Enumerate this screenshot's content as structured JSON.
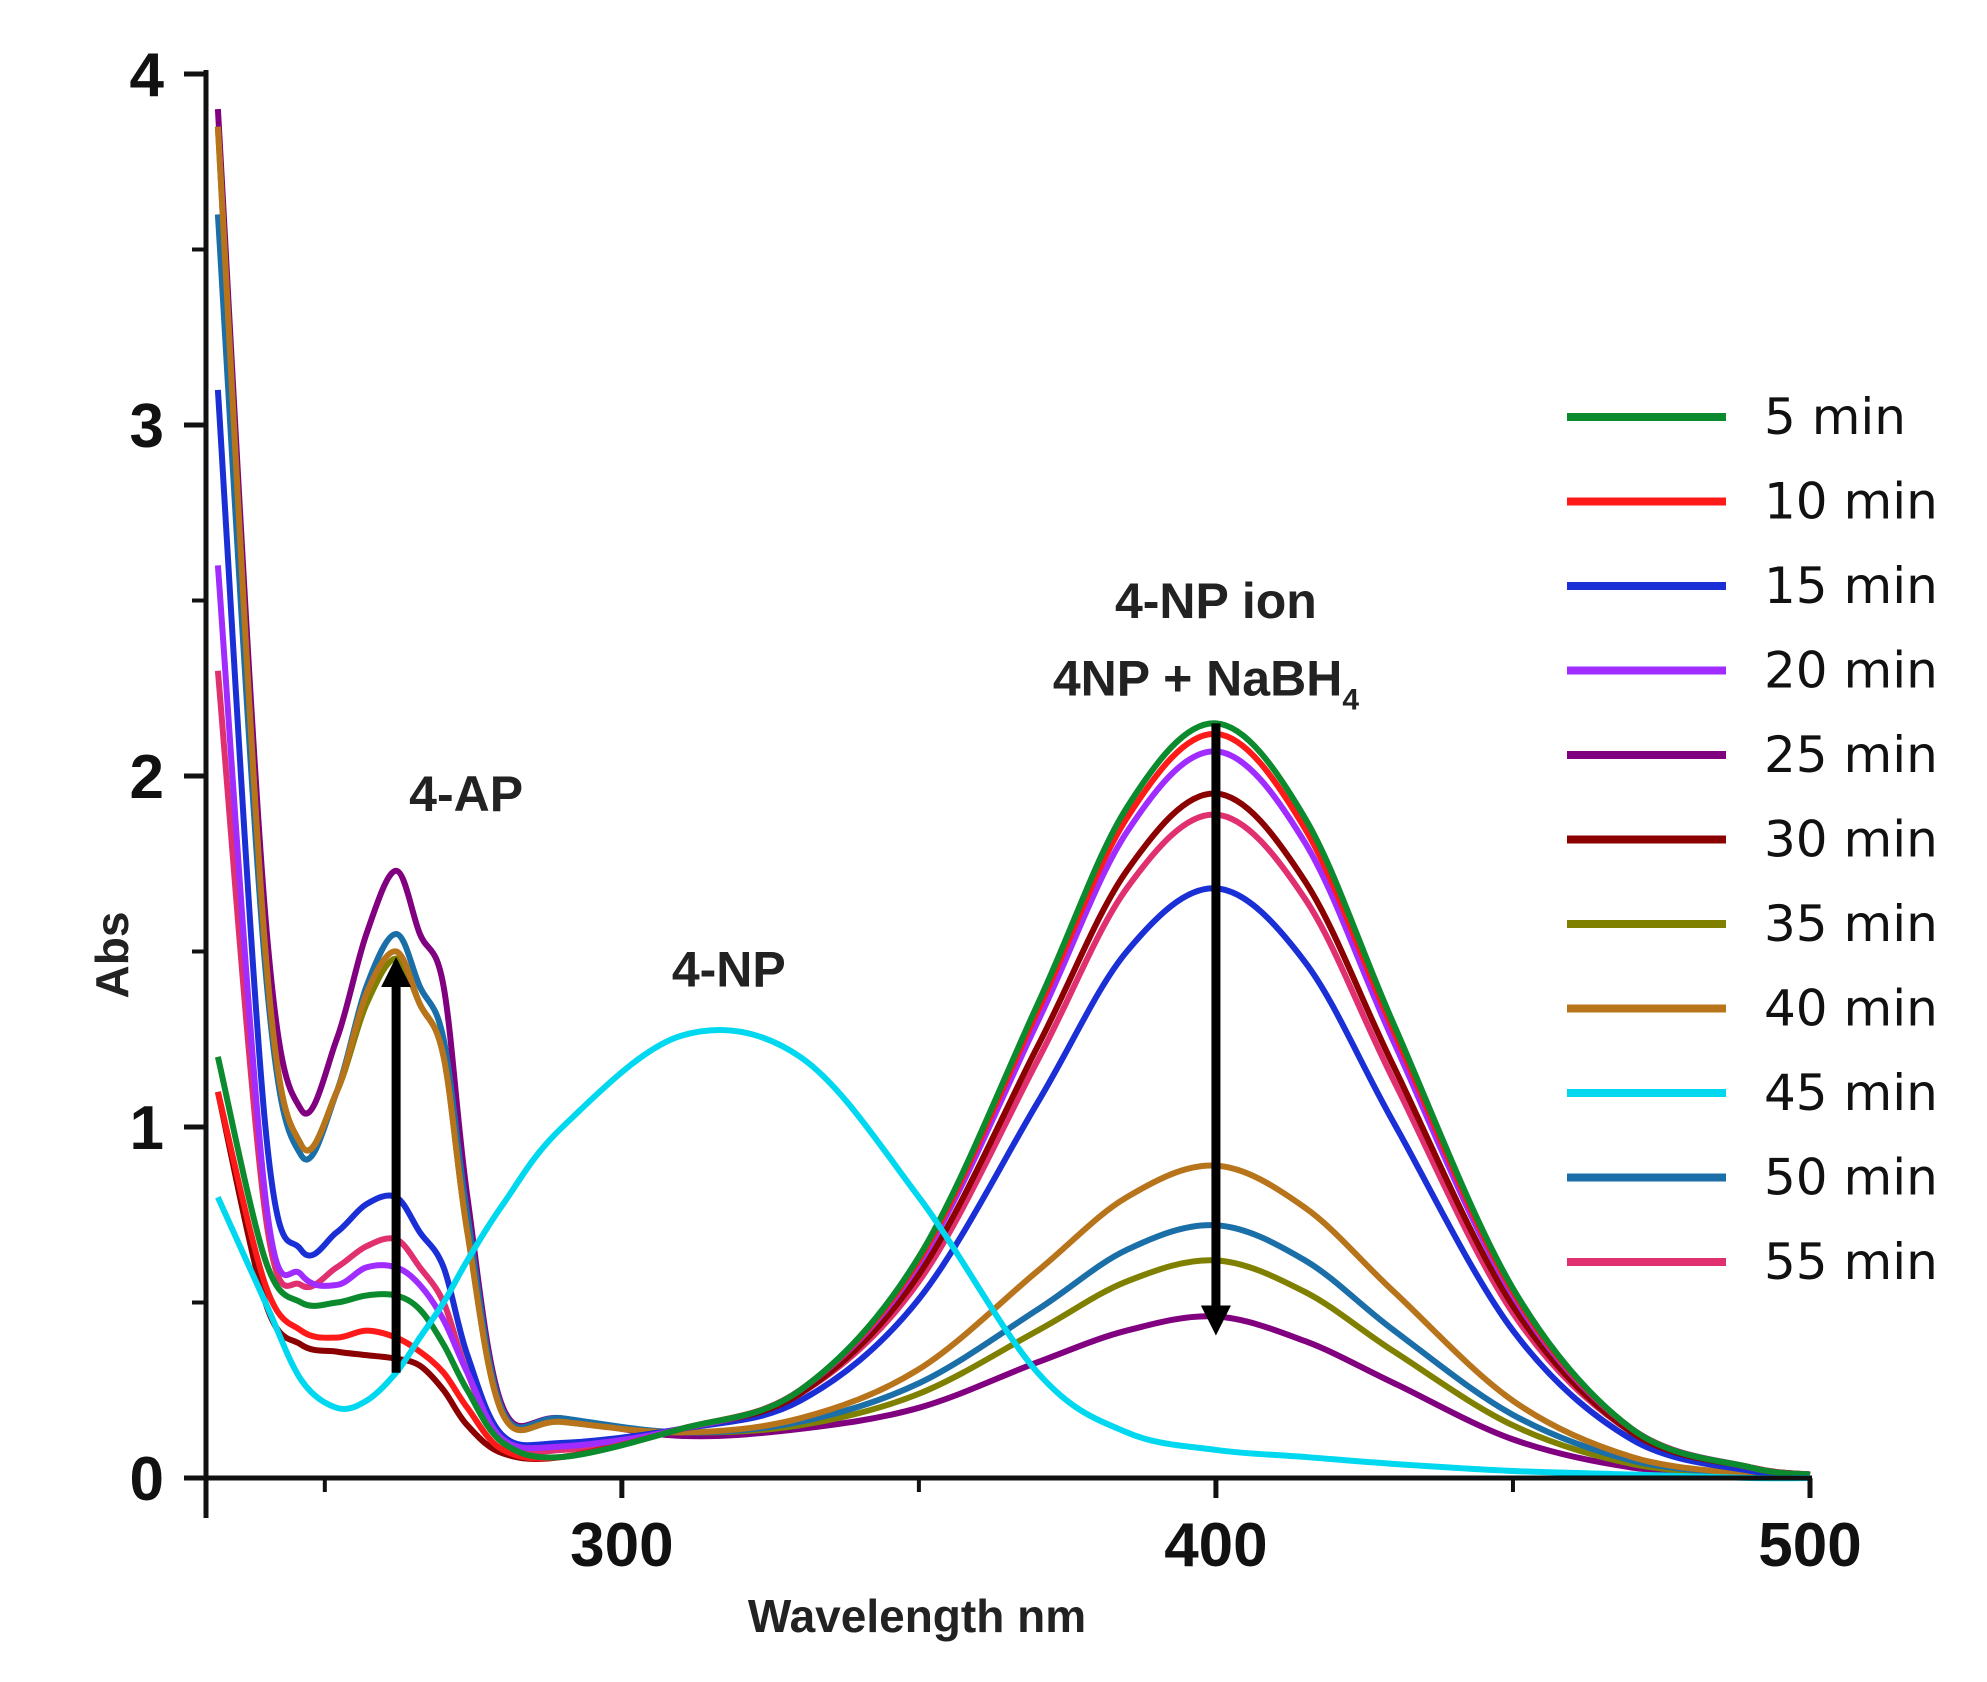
{
  "chart_data": {
    "type": "line",
    "title": "",
    "xlabel": "Wavelength nm",
    "ylabel": "Abs",
    "xlim": [
      230,
      500
    ],
    "ylim": [
      0,
      4
    ],
    "x_ticks": [
      300,
      400,
      500
    ],
    "x_minor_ticks": [
      250,
      350,
      450
    ],
    "y_ticks": [
      0,
      1,
      2,
      3,
      4
    ],
    "y_minor_ticks": [
      0.5,
      1.5,
      2.5,
      3.5
    ],
    "grid": false,
    "legend_position": "right",
    "x": [
      232,
      240,
      246,
      252,
      257,
      262,
      266,
      270,
      274,
      280,
      290,
      310,
      330,
      350,
      370,
      385,
      400,
      415,
      430,
      450,
      470,
      490,
      500
    ],
    "series": [
      {
        "name": "5 min",
        "color": "#0b8a2e",
        "values": [
          1.2,
          0.62,
          0.5,
          0.5,
          0.52,
          0.52,
          0.48,
          0.38,
          0.25,
          0.1,
          0.06,
          0.14,
          0.25,
          0.63,
          1.35,
          1.91,
          2.15,
          1.88,
          1.29,
          0.54,
          0.14,
          0.03,
          0.01
        ]
      },
      {
        "name": "10 min",
        "color": "#ff1a1a",
        "values": [
          1.1,
          0.55,
          0.42,
          0.4,
          0.42,
          0.4,
          0.36,
          0.3,
          0.2,
          0.08,
          0.06,
          0.14,
          0.25,
          0.62,
          1.33,
          1.88,
          2.12,
          1.85,
          1.27,
          0.53,
          0.14,
          0.03,
          0.01
        ]
      },
      {
        "name": "15 min",
        "color": "#1a2fd6",
        "values": [
          3.1,
          1.0,
          0.65,
          0.7,
          0.78,
          0.8,
          0.7,
          0.6,
          0.35,
          0.12,
          0.1,
          0.14,
          0.22,
          0.51,
          1.07,
          1.5,
          1.68,
          1.47,
          1.01,
          0.42,
          0.11,
          0.02,
          0.01
        ]
      },
      {
        "name": "20 min",
        "color": "#a12cff",
        "values": [
          2.6,
          0.8,
          0.58,
          0.55,
          0.6,
          0.6,
          0.55,
          0.45,
          0.3,
          0.11,
          0.09,
          0.14,
          0.25,
          0.61,
          1.3,
          1.84,
          2.07,
          1.81,
          1.24,
          0.52,
          0.14,
          0.03,
          0.01
        ]
      },
      {
        "name": "25 min",
        "color": "#800080",
        "values": [
          3.9,
          1.6,
          1.05,
          1.25,
          1.55,
          1.73,
          1.55,
          1.4,
          0.8,
          0.2,
          0.17,
          0.12,
          0.14,
          0.2,
          0.33,
          0.42,
          0.46,
          0.39,
          0.27,
          0.11,
          0.03,
          0.01,
          0.0
        ]
      },
      {
        "name": "30 min",
        "color": "#8b0000",
        "values": [
          1.1,
          0.5,
          0.38,
          0.36,
          0.35,
          0.34,
          0.32,
          0.25,
          0.15,
          0.07,
          0.06,
          0.14,
          0.24,
          0.58,
          1.23,
          1.73,
          1.95,
          1.7,
          1.17,
          0.49,
          0.13,
          0.03,
          0.01
        ]
      },
      {
        "name": "35 min",
        "color": "#808000",
        "values": [
          3.85,
          1.5,
          0.95,
          1.1,
          1.35,
          1.48,
          1.35,
          1.2,
          0.7,
          0.18,
          0.16,
          0.13,
          0.15,
          0.24,
          0.42,
          0.56,
          0.62,
          0.53,
          0.36,
          0.15,
          0.04,
          0.01,
          0.0
        ]
      },
      {
        "name": "40 min",
        "color": "#b8741a",
        "values": [
          3.85,
          1.5,
          0.95,
          1.1,
          1.38,
          1.5,
          1.35,
          1.2,
          0.7,
          0.18,
          0.16,
          0.13,
          0.17,
          0.31,
          0.59,
          0.8,
          0.89,
          0.77,
          0.53,
          0.22,
          0.06,
          0.01,
          0.0
        ]
      },
      {
        "name": "45 min",
        "color": "#00d8f0",
        "values": [
          0.8,
          0.5,
          0.28,
          0.2,
          0.22,
          0.3,
          0.4,
          0.5,
          0.62,
          0.78,
          1.0,
          1.26,
          1.2,
          0.8,
          0.3,
          0.13,
          0.08,
          0.06,
          0.04,
          0.02,
          0.01,
          0.0,
          0.0
        ]
      },
      {
        "name": "50 min",
        "color": "#1b6fa8",
        "values": [
          3.6,
          1.45,
          0.92,
          1.1,
          1.4,
          1.55,
          1.4,
          1.25,
          0.75,
          0.19,
          0.17,
          0.13,
          0.16,
          0.27,
          0.48,
          0.65,
          0.72,
          0.62,
          0.42,
          0.18,
          0.05,
          0.01,
          0.0
        ]
      },
      {
        "name": "55 min",
        "color": "#e0306f",
        "values": [
          2.3,
          0.75,
          0.55,
          0.6,
          0.66,
          0.68,
          0.6,
          0.5,
          0.3,
          0.1,
          0.08,
          0.14,
          0.24,
          0.56,
          1.19,
          1.68,
          1.89,
          1.65,
          1.13,
          0.47,
          0.13,
          0.03,
          0.01
        ]
      }
    ],
    "annotations": [
      {
        "text": "4-AP",
        "x": 262,
        "y": 1.9
      },
      {
        "text": "4-NP",
        "x": 318,
        "y": 1.4
      },
      {
        "text": "4-NP ion",
        "x": 400,
        "y": 2.45
      },
      {
        "text": "4NP + NaBH",
        "subscript": "4",
        "x": 400,
        "y": 2.23
      }
    ],
    "arrows": [
      {
        "direction": "up",
        "x": 262,
        "from": 0.3,
        "to": 1.45
      },
      {
        "direction": "down",
        "x": 400,
        "from": 2.15,
        "to": 0.44
      }
    ]
  }
}
